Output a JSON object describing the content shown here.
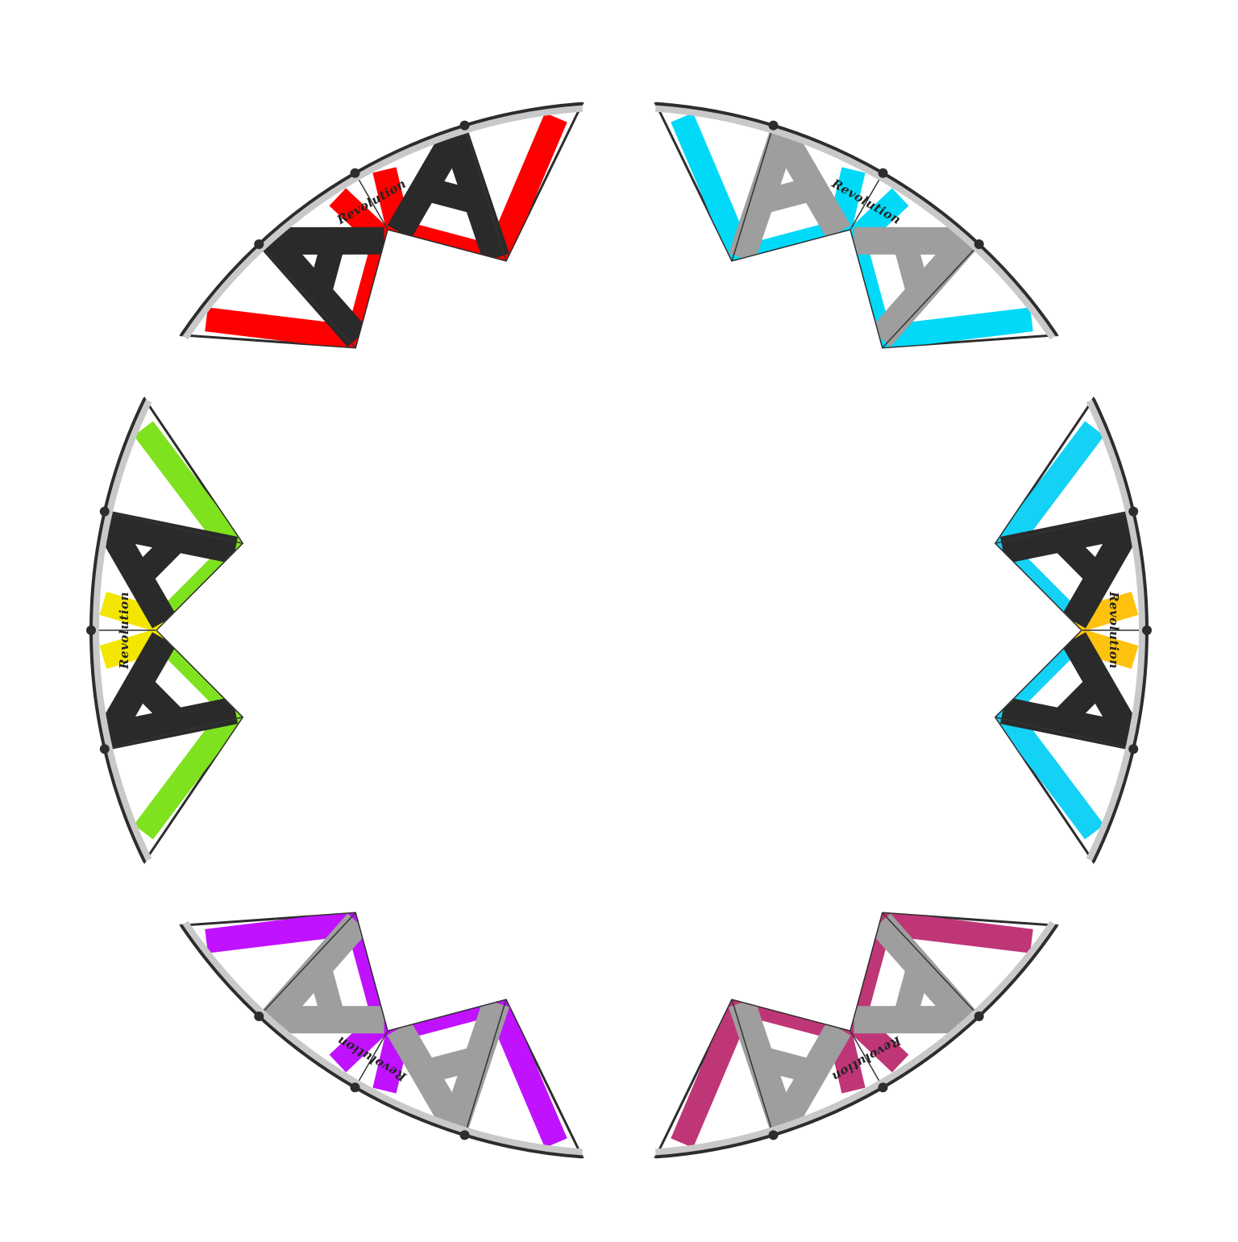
{
  "image": {
    "description_items": [
      {
        "key": "kite-red",
        "accent": "#ff0000",
        "cross": "#2a2a2a"
      },
      {
        "key": "kite-cyan-top",
        "accent": "#00d9f7",
        "cross": "#9e9e9e"
      },
      {
        "key": "kite-cyan-right",
        "accent": "#14d2f5",
        "accent2": "#ffc20e",
        "cross": "#2a2a2a"
      },
      {
        "key": "kite-magenta",
        "accent": "#bf3677",
        "cross": "#9e9e9e"
      },
      {
        "key": "kite-purple",
        "accent": "#c012ff",
        "cross": "#9e9e9e"
      },
      {
        "key": "kite-green",
        "accent": "#7fe21f",
        "accent2": "#f3e600",
        "cross": "#2a2a2a"
      }
    ],
    "logo_text": "Revolution",
    "colors": {
      "background": "#ffffff",
      "frame": "#2d2d2d",
      "leading_edge": "#c9c9c9",
      "sail_white": "#ffffff"
    }
  }
}
